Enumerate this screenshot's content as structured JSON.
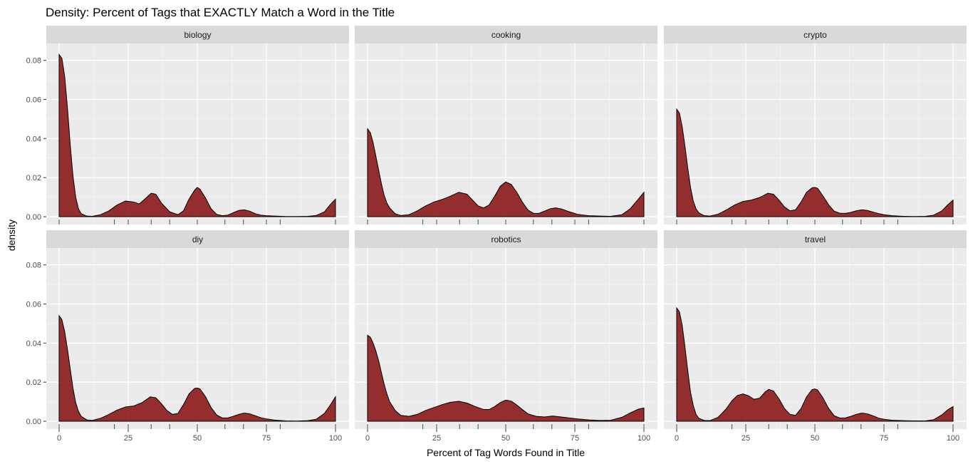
{
  "chart_data": {
    "type": "area",
    "title": "Density: Percent of Tags that EXACTLY Match a Word in the Title",
    "xlabel": "Percent of Tag Words Found in Title",
    "ylabel": "density",
    "xlim": [
      0,
      100
    ],
    "ylim": [
      0,
      0.085
    ],
    "x_ticks": [
      0,
      25,
      50,
      75,
      100
    ],
    "y_ticks": [
      0.0,
      0.02,
      0.04,
      0.06,
      0.08
    ],
    "y_tick_labels": [
      "0.00",
      "0.02",
      "0.04",
      "0.06",
      "0.08"
    ],
    "grid": true,
    "fill_color": "#8B1A1A",
    "line_color": "#000000",
    "rug_color": "#1E6B1E",
    "rug_values": [
      0,
      20,
      25,
      33.3,
      40,
      50,
      60,
      66.7,
      75,
      80,
      100
    ],
    "panels": [
      {
        "name": "biology",
        "x": [
          0,
          1,
          2,
          3,
          4,
          5,
          6,
          7,
          8,
          10,
          12,
          15,
          18,
          21,
          24,
          27,
          29,
          31,
          33.3,
          35,
          37,
          40,
          43,
          45,
          47,
          49,
          50,
          51,
          53,
          55,
          57,
          59,
          61,
          63,
          65,
          67,
          69,
          71,
          73,
          75,
          78,
          82,
          86,
          90,
          93,
          96,
          98,
          100
        ],
        "y": [
          0.083,
          0.081,
          0.072,
          0.056,
          0.037,
          0.021,
          0.01,
          0.004,
          0.0015,
          0.0003,
          0.0002,
          0.001,
          0.003,
          0.006,
          0.008,
          0.0075,
          0.0065,
          0.009,
          0.012,
          0.0115,
          0.007,
          0.0025,
          0.001,
          0.003,
          0.009,
          0.0135,
          0.015,
          0.014,
          0.0095,
          0.004,
          0.0012,
          0.0005,
          0.0008,
          0.002,
          0.0032,
          0.0035,
          0.0028,
          0.0015,
          0.0008,
          0.0005,
          0.0003,
          0.0001,
          0.0001,
          0.0002,
          0.0006,
          0.0025,
          0.006,
          0.009
        ]
      },
      {
        "name": "cooking",
        "x": [
          0,
          1,
          2,
          3,
          4,
          5,
          6,
          7,
          8,
          10,
          12,
          15,
          18,
          21,
          24,
          27,
          30,
          33,
          36,
          38,
          40,
          42,
          44,
          46,
          48,
          50,
          52,
          54,
          56,
          58,
          60,
          62,
          64,
          66,
          68,
          70,
          73,
          76,
          80,
          84,
          88,
          92,
          95,
          98,
          100
        ],
        "y": [
          0.045,
          0.043,
          0.038,
          0.031,
          0.024,
          0.017,
          0.011,
          0.007,
          0.0045,
          0.0015,
          0.0006,
          0.001,
          0.003,
          0.0055,
          0.0075,
          0.0088,
          0.0105,
          0.0125,
          0.0115,
          0.0085,
          0.0055,
          0.0045,
          0.006,
          0.0105,
          0.0155,
          0.0178,
          0.0165,
          0.0125,
          0.0075,
          0.0035,
          0.0017,
          0.0017,
          0.0028,
          0.004,
          0.0045,
          0.004,
          0.0025,
          0.0012,
          0.0005,
          0.0003,
          0.0002,
          0.001,
          0.004,
          0.009,
          0.0125
        ]
      },
      {
        "name": "crypto",
        "x": [
          0,
          1,
          2,
          3,
          4,
          5,
          6,
          7,
          8,
          10,
          12,
          15,
          18,
          21,
          24,
          27,
          30,
          33,
          35,
          37,
          39,
          41,
          43,
          45,
          47,
          49,
          50,
          51,
          53,
          55,
          57,
          59,
          61,
          63,
          65,
          67,
          69,
          71,
          73,
          75,
          78,
          82,
          86,
          90,
          93,
          96,
          98,
          100
        ],
        "y": [
          0.055,
          0.053,
          0.046,
          0.036,
          0.025,
          0.015,
          0.008,
          0.004,
          0.002,
          0.0005,
          0.0003,
          0.0013,
          0.0035,
          0.006,
          0.0078,
          0.0085,
          0.0098,
          0.012,
          0.0115,
          0.0085,
          0.005,
          0.003,
          0.0035,
          0.0075,
          0.0125,
          0.0148,
          0.015,
          0.0145,
          0.0105,
          0.006,
          0.0028,
          0.0018,
          0.0017,
          0.0022,
          0.003,
          0.0035,
          0.0032,
          0.0024,
          0.0016,
          0.001,
          0.0005,
          0.0002,
          0.0001,
          0.0002,
          0.0008,
          0.003,
          0.006,
          0.0085
        ]
      },
      {
        "name": "diy",
        "x": [
          0,
          1,
          2,
          3,
          4,
          5,
          6,
          7,
          8,
          10,
          12,
          15,
          18,
          21,
          24,
          27,
          30,
          33,
          35,
          37,
          39,
          41,
          43,
          45,
          47,
          49,
          50,
          51,
          53,
          55,
          57,
          59,
          61,
          63,
          65,
          67,
          69,
          71,
          73,
          75,
          78,
          82,
          86,
          90,
          93,
          96,
          98,
          100
        ],
        "y": [
          0.054,
          0.052,
          0.046,
          0.037,
          0.027,
          0.017,
          0.0095,
          0.005,
          0.0025,
          0.0007,
          0.0004,
          0.0015,
          0.0035,
          0.0057,
          0.0073,
          0.0078,
          0.0095,
          0.0125,
          0.012,
          0.009,
          0.0055,
          0.0035,
          0.004,
          0.0085,
          0.014,
          0.0168,
          0.017,
          0.0165,
          0.0125,
          0.007,
          0.0032,
          0.0017,
          0.0017,
          0.0025,
          0.0035,
          0.0042,
          0.0038,
          0.0028,
          0.0018,
          0.0012,
          0.0006,
          0.0002,
          0.0001,
          0.0003,
          0.001,
          0.004,
          0.008,
          0.0125
        ]
      },
      {
        "name": "robotics",
        "x": [
          0,
          1,
          2,
          3,
          4,
          5,
          6,
          7,
          8,
          10,
          12,
          15,
          18,
          21,
          24,
          27,
          30,
          33,
          36,
          39,
          42,
          44,
          46,
          48,
          50,
          52,
          54,
          56,
          58,
          61,
          64,
          67,
          70,
          73,
          76,
          80,
          84,
          88,
          92,
          95,
          98,
          100
        ],
        "y": [
          0.044,
          0.043,
          0.04,
          0.036,
          0.031,
          0.025,
          0.019,
          0.014,
          0.01,
          0.0055,
          0.003,
          0.0025,
          0.0035,
          0.0055,
          0.007,
          0.0085,
          0.0097,
          0.0102,
          0.0093,
          0.0075,
          0.006,
          0.006,
          0.0075,
          0.0095,
          0.0108,
          0.0103,
          0.0083,
          0.006,
          0.0038,
          0.0025,
          0.0022,
          0.0027,
          0.0022,
          0.0017,
          0.0012,
          0.0007,
          0.0004,
          0.0005,
          0.002,
          0.0042,
          0.0062,
          0.0068
        ]
      },
      {
        "name": "travel",
        "x": [
          0,
          1,
          2,
          3,
          4,
          5,
          6,
          7,
          8,
          10,
          12,
          15,
          18,
          20,
          22,
          24,
          26,
          28,
          30,
          32,
          33.3,
          35,
          37,
          39,
          41,
          43,
          45,
          47,
          49,
          50,
          51,
          53,
          55,
          57,
          59,
          61,
          63,
          65,
          67,
          69,
          71,
          73,
          75,
          78,
          82,
          86,
          90,
          93,
          96,
          98,
          100
        ],
        "y": [
          0.058,
          0.056,
          0.049,
          0.038,
          0.026,
          0.015,
          0.008,
          0.0035,
          0.0015,
          0.0004,
          0.0003,
          0.002,
          0.0065,
          0.0105,
          0.0132,
          0.014,
          0.013,
          0.0112,
          0.0118,
          0.015,
          0.0163,
          0.0155,
          0.0115,
          0.0065,
          0.0035,
          0.003,
          0.0065,
          0.0125,
          0.0162,
          0.0165,
          0.016,
          0.0118,
          0.0065,
          0.0028,
          0.0017,
          0.0017,
          0.0025,
          0.0035,
          0.0042,
          0.0038,
          0.0028,
          0.0016,
          0.001,
          0.0005,
          0.0003,
          0.0002,
          0.0002,
          0.0008,
          0.0033,
          0.0058,
          0.0075
        ]
      }
    ]
  }
}
